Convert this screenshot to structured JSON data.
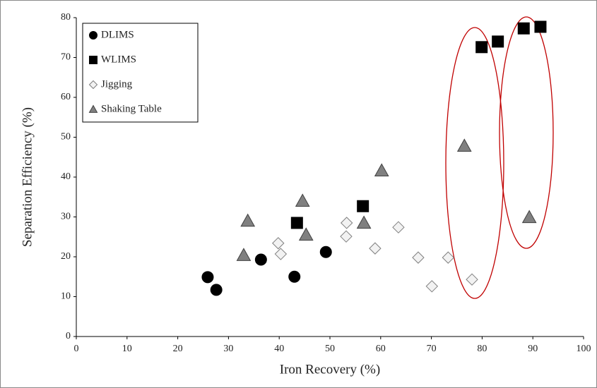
{
  "chart_data": {
    "type": "scatter",
    "x_label": "Iron Recovery (%)",
    "y_label": "Separation Efficiency (%)",
    "xlim": [
      0,
      100
    ],
    "xticks": [
      0,
      10,
      20,
      30,
      40,
      50,
      60,
      70,
      80,
      90,
      100
    ],
    "ylim": [
      0,
      80
    ],
    "yticks": [
      0,
      10,
      20,
      30,
      40,
      50,
      60,
      70,
      80
    ],
    "grid": false,
    "legend": "upper left",
    "series": [
      {
        "name": "DLIMS",
        "marker": "circle",
        "color": "#000000",
        "edgecolor": "#000000",
        "x": [
          25.9,
          27.6,
          36.4,
          43.0,
          49.2
        ],
        "values": [
          14.9,
          11.7,
          19.3,
          15.0,
          21.2
        ]
      },
      {
        "name": "WLIMS",
        "marker": "square",
        "color": "#000000",
        "edgecolor": "#000000",
        "x": [
          43.5,
          56.5,
          79.9,
          83.1,
          88.2,
          91.5
        ],
        "values": [
          28.5,
          32.7,
          72.6,
          74.0,
          77.3,
          77.7
        ]
      },
      {
        "name": "Jigging",
        "marker": "diamond",
        "color": "#f2f2f2",
        "edgecolor": "#7f7f7f",
        "x": [
          39.8,
          40.3,
          53.3,
          53.2,
          58.9,
          63.5,
          67.4,
          73.3,
          70.1,
          78.0
        ],
        "values": [
          23.4,
          20.7,
          28.5,
          25.1,
          22.1,
          27.4,
          19.8,
          19.8,
          12.6,
          14.3
        ]
      },
      {
        "name": "Shaking Table",
        "marker": "triangle",
        "color": "#808080",
        "edgecolor": "#404040",
        "x": [
          33.0,
          33.8,
          44.6,
          45.3,
          56.7,
          60.2,
          76.5,
          89.3
        ],
        "values": [
          20.4,
          29.0,
          34.0,
          25.5,
          28.5,
          41.6,
          47.8,
          29.9
        ]
      }
    ]
  }
}
